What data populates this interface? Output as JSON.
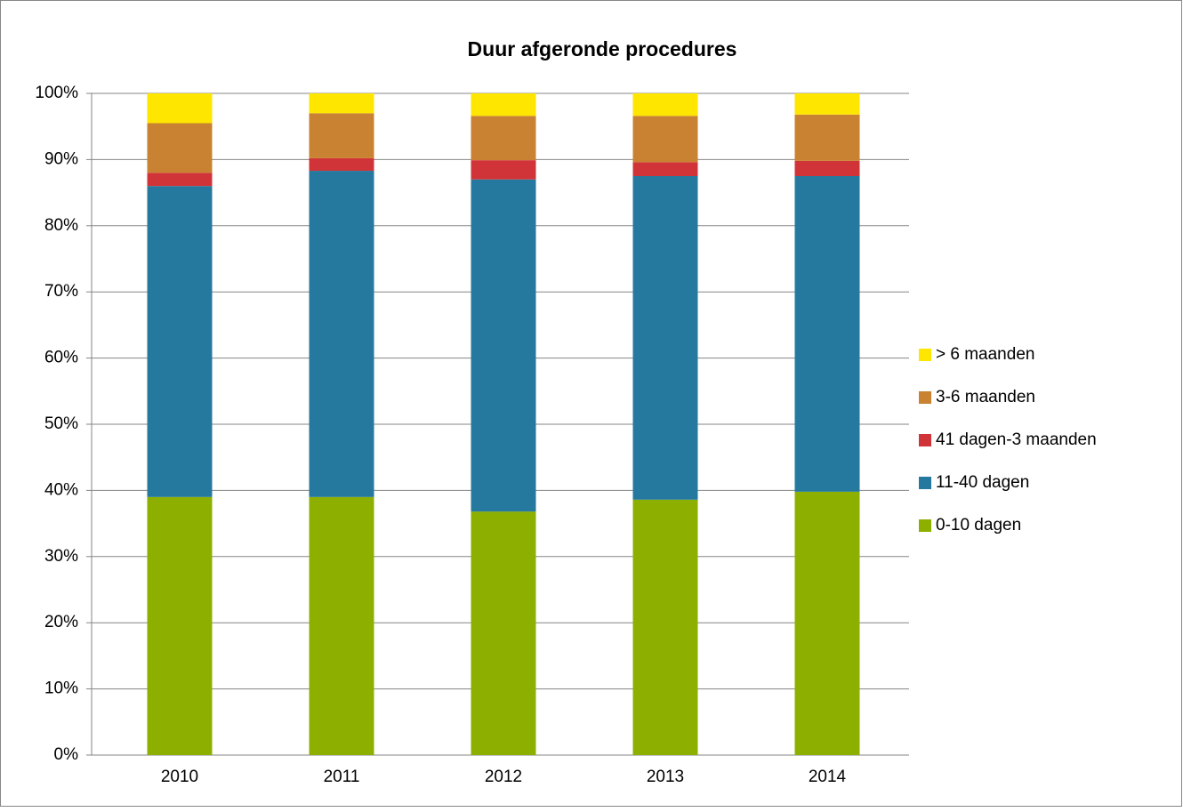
{
  "chart_data": {
    "type": "stacked_bar",
    "title": "Duur afgeronde procedures",
    "categories": [
      "2010",
      "2011",
      "2012",
      "2013",
      "2014"
    ],
    "series": [
      {
        "name": "0-10 dagen",
        "color": "#8db000",
        "values": [
          39,
          39,
          36.8,
          38.6,
          39.8
        ]
      },
      {
        "name": "11-40 dagen",
        "color": "#25799e",
        "values": [
          47,
          49.3,
          50.2,
          48.9,
          47.7
        ]
      },
      {
        "name": "41 dagen-3 maanden",
        "color": "#d03438",
        "values": [
          2,
          1.9,
          2.9,
          2.1,
          2.3
        ]
      },
      {
        "name": "3-6 maanden",
        "color": "#c98231",
        "values": [
          7.5,
          6.8,
          6.7,
          7.0,
          7.0
        ]
      },
      {
        "name": "> 6 maanden",
        "color": "#fee600",
        "values": [
          4.5,
          3.0,
          3.4,
          3.4,
          3.2
        ]
      }
    ],
    "ylim": [
      0,
      100
    ],
    "yticks": [
      {
        "value": 0,
        "label": "0%"
      },
      {
        "value": 10,
        "label": "10%"
      },
      {
        "value": 20,
        "label": "20%"
      },
      {
        "value": 30,
        "label": "30%"
      },
      {
        "value": 40,
        "label": "40%"
      },
      {
        "value": 50,
        "label": "50%"
      },
      {
        "value": 60,
        "label": "60%"
      },
      {
        "value": 70,
        "label": "70%"
      },
      {
        "value": 80,
        "label": "80%"
      },
      {
        "value": 90,
        "label": "90%"
      },
      {
        "value": 100,
        "label": "100%"
      }
    ],
    "grid": true,
    "legend": "right"
  }
}
